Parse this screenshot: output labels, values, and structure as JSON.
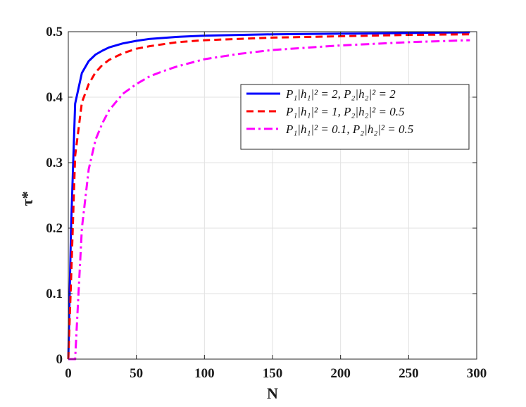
{
  "chart_data": {
    "type": "line",
    "xlabel": "N",
    "ylabel": "τ*",
    "xlim": [
      0,
      300
    ],
    "ylim": [
      0,
      0.5
    ],
    "xticks": [
      "0",
      "50",
      "100",
      "150",
      "200",
      "250",
      "300"
    ],
    "yticks": [
      "0",
      "0.1",
      "0.2",
      "0.3",
      "0.4",
      "0.5"
    ],
    "grid": true,
    "legend_position": "right",
    "series": [
      {
        "name": "P1|h1|^2 = 2, P2|h2|^2 = 2",
        "legend_text": "P₁|h₁|² = 2, P₂|h₂|² = 2",
        "color": "#0000ff",
        "style": "solid",
        "x": [
          0,
          2,
          5,
          10,
          15,
          20,
          25,
          30,
          40,
          50,
          60,
          80,
          100,
          150,
          200,
          250,
          295
        ],
        "y": [
          0.0,
          0.2,
          0.39,
          0.437,
          0.455,
          0.465,
          0.471,
          0.476,
          0.482,
          0.486,
          0.489,
          0.492,
          0.494,
          0.496,
          0.497,
          0.498,
          0.499
        ]
      },
      {
        "name": "P1|h1|^2 = 1, P2|h2|^2 = 0.5",
        "legend_text": "P₁|h₁|² = 1, P₂|h₂|² = 0.5",
        "color": "#ff0000",
        "style": "dashed",
        "x": [
          0,
          2,
          5,
          10,
          15,
          20,
          25,
          30,
          40,
          50,
          60,
          80,
          100,
          150,
          200,
          250,
          295
        ],
        "y": [
          0.0,
          0.12,
          0.31,
          0.392,
          0.42,
          0.438,
          0.449,
          0.457,
          0.467,
          0.474,
          0.478,
          0.484,
          0.487,
          0.491,
          0.493,
          0.495,
          0.496
        ]
      },
      {
        "name": "P1|h1|^2 = 0.1, P2|h2|^2 = 0.5",
        "legend_text": "P₁|h₁|² = 0.1, P₂|h₂|² = 0.5",
        "color": "#ff00ff",
        "style": "dashdot",
        "x": [
          0,
          5,
          7,
          10,
          15,
          20,
          25,
          30,
          40,
          50,
          60,
          70,
          80,
          100,
          125,
          150,
          200,
          250,
          295
        ],
        "y": [
          0.0,
          0.0,
          0.08,
          0.2,
          0.29,
          0.335,
          0.36,
          0.38,
          0.405,
          0.42,
          0.432,
          0.44,
          0.447,
          0.458,
          0.466,
          0.472,
          0.479,
          0.484,
          0.487
        ]
      }
    ]
  }
}
